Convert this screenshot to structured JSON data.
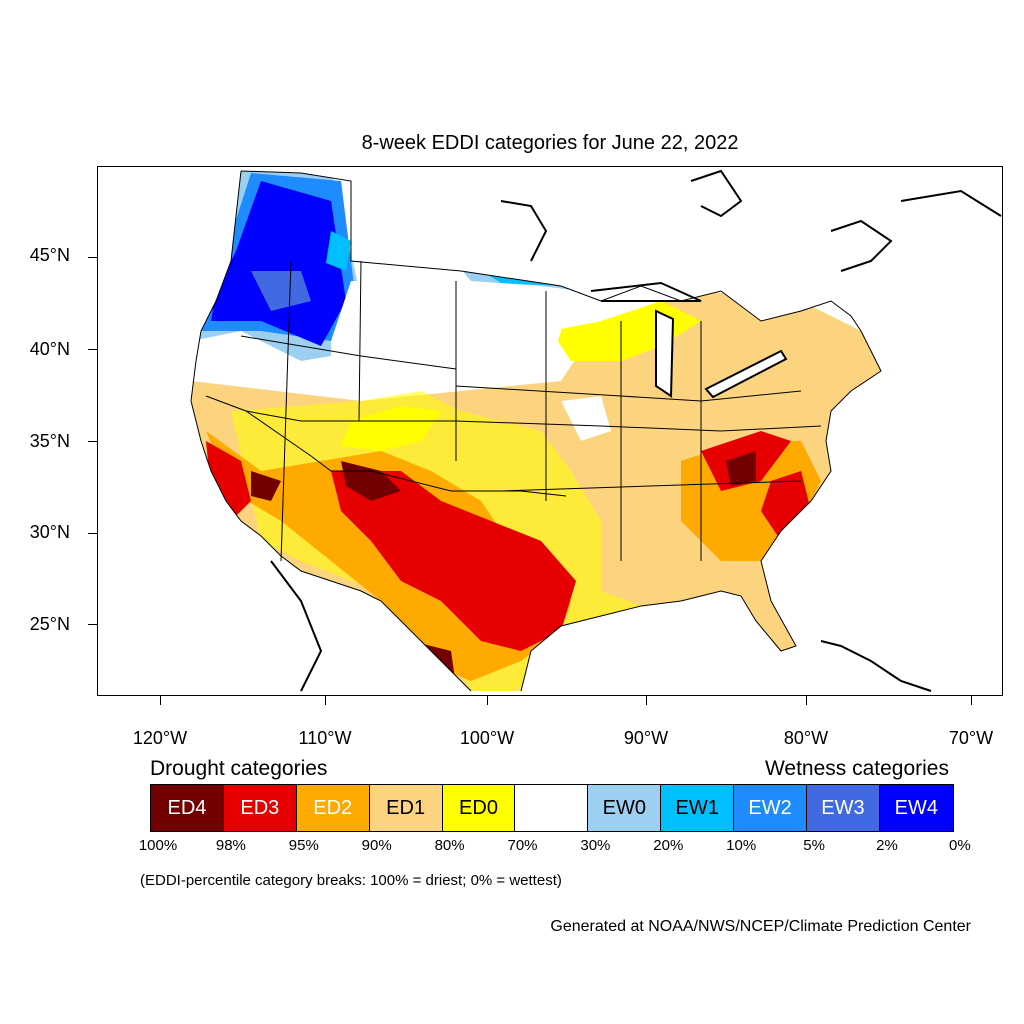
{
  "title": "8-week EDDI categories for June 22, 2022",
  "axes": {
    "lat_labels": [
      "45°N",
      "40°N",
      "35°N",
      "30°N",
      "25°N"
    ],
    "lon_labels": [
      "120°W",
      "110°W",
      "100°W",
      "90°W",
      "80°W",
      "70°W"
    ]
  },
  "legend": {
    "drought_heading": "Drought categories",
    "wetness_heading": "Wetness categories",
    "categories": [
      {
        "label": "ED4",
        "color": "#730000"
      },
      {
        "label": "ED3",
        "color": "#e60000"
      },
      {
        "label": "ED2",
        "color": "#ffaa00"
      },
      {
        "label": "ED1",
        "color": "#fcd37f"
      },
      {
        "label": "ED0",
        "color": "#ffff00"
      },
      {
        "label": "",
        "color": "#ffffff"
      },
      {
        "label": "EW0",
        "color": "#9ccff0"
      },
      {
        "label": "EW1",
        "color": "#00bfff"
      },
      {
        "label": "EW2",
        "color": "#1e8cff"
      },
      {
        "label": "EW3",
        "color": "#4169e1"
      },
      {
        "label": "EW4",
        "color": "#0000ff"
      }
    ],
    "percentiles": [
      "100%",
      "98%",
      "95%",
      "90%",
      "80%",
      "70%",
      "30%",
      "20%",
      "10%",
      "5%",
      "2%",
      "0%"
    ]
  },
  "note": "(EDDI-percentile category breaks: 100% = driest; 0% = wettest)",
  "credit": "Generated at NOAA/NWS/NCEP/Climate Prediction Center"
}
